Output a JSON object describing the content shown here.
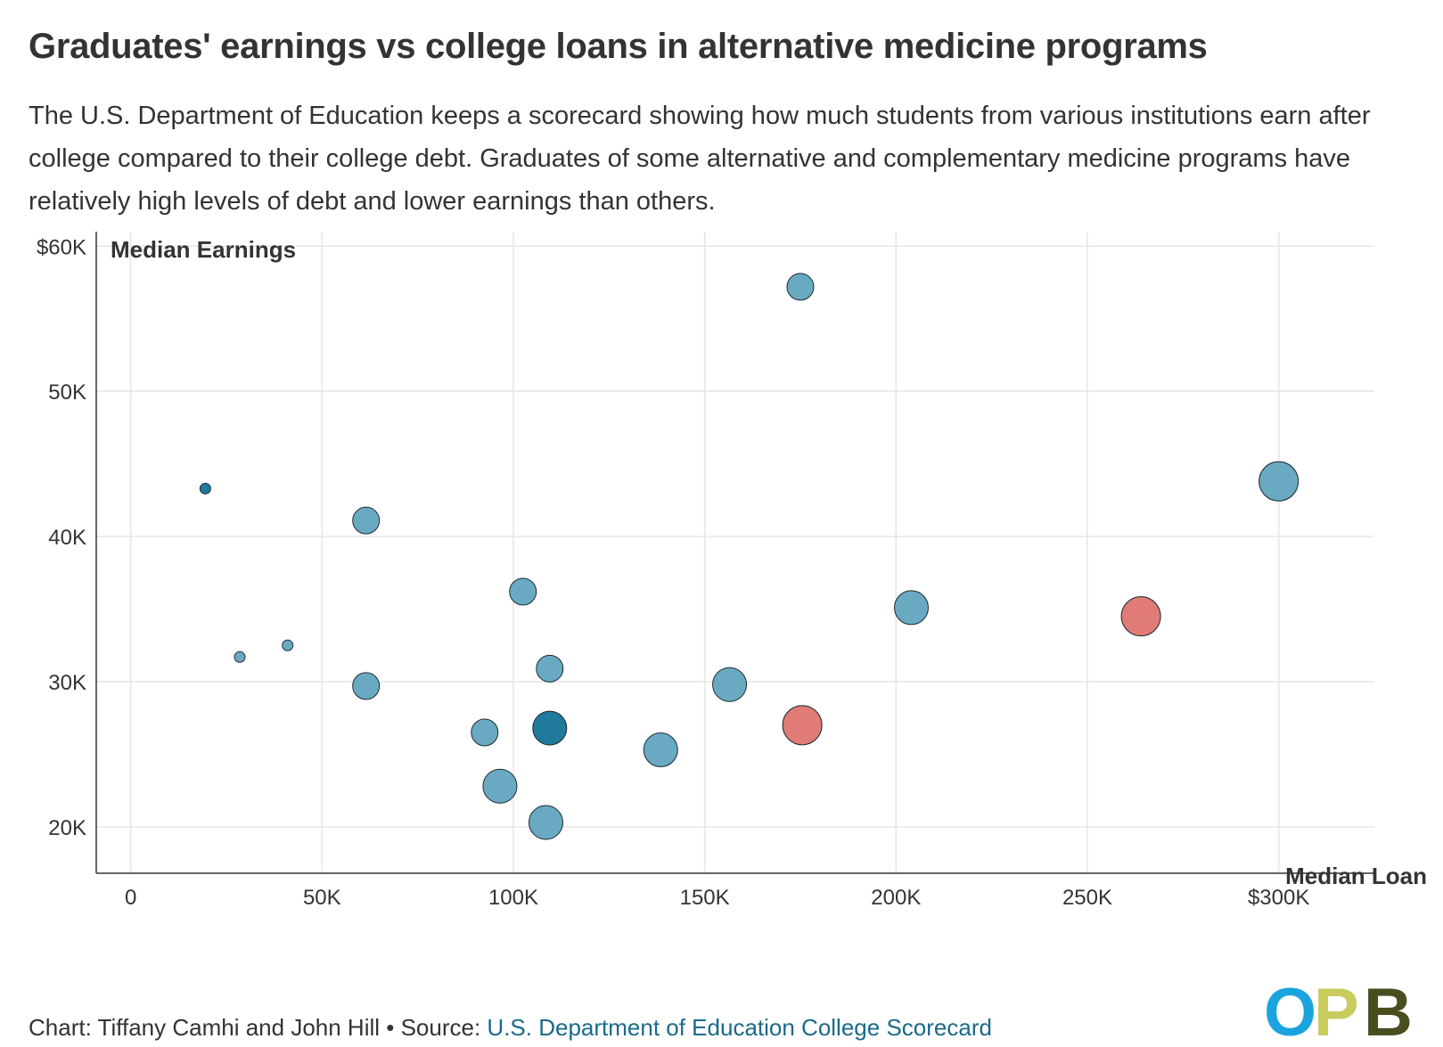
{
  "title": "Graduates' earnings vs college loans in alternative medicine programs",
  "subtitle": "The U.S. Department of Education keeps a scorecard showing how much students from various institutions earn after college compared to their college debt. Graduates of some alternative and complementary medicine programs have relatively high levels of debt and lower earnings than others.",
  "footer": {
    "credit": "Chart: Tiffany Camhi and John Hill • Source: ",
    "source_link": "U.S. Department of Education College Scorecard"
  },
  "logo": {
    "text": "OPB",
    "colors": [
      "#1ba3e0",
      "#c9cc5c",
      "#4a4e1f"
    ]
  },
  "colors": {
    "default_point": "#6aa9c2",
    "dark_point": "#1f7a9c",
    "highlight_point": "#e07b76",
    "grid": "#e6e6e6"
  },
  "chart_data": {
    "type": "scatter",
    "xlabel": "Median Loan",
    "ylabel": "Median Earnings",
    "xlim": [
      -9000,
      325000
    ],
    "ylim": [
      16800,
      61000
    ],
    "x_ticks": [
      0,
      50000,
      100000,
      150000,
      200000,
      250000,
      300000
    ],
    "x_tick_labels": [
      "0",
      "50K",
      "100K",
      "150K",
      "200K",
      "250K",
      "$300K"
    ],
    "y_ticks": [
      20000,
      30000,
      40000,
      50000,
      60000
    ],
    "y_tick_labels": [
      "20K",
      "30K",
      "40K",
      "50K",
      "$60K"
    ],
    "grid": true,
    "points": [
      {
        "x": 175000,
        "y": 57200,
        "size": 2,
        "color": "default"
      },
      {
        "x": 19500,
        "y": 43300,
        "size": 1,
        "color": "dark"
      },
      {
        "x": 300000,
        "y": 43800,
        "size": 4,
        "color": "default"
      },
      {
        "x": 61500,
        "y": 41100,
        "size": 2,
        "color": "default"
      },
      {
        "x": 102500,
        "y": 36200,
        "size": 2,
        "color": "default"
      },
      {
        "x": 204000,
        "y": 35100,
        "size": 3,
        "color": "default"
      },
      {
        "x": 264000,
        "y": 34500,
        "size": 4,
        "color": "highlight"
      },
      {
        "x": 41000,
        "y": 32500,
        "size": 1,
        "color": "default"
      },
      {
        "x": 28500,
        "y": 31700,
        "size": 1,
        "color": "default"
      },
      {
        "x": 109500,
        "y": 30900,
        "size": 2,
        "color": "default"
      },
      {
        "x": 61500,
        "y": 29700,
        "size": 2,
        "color": "default"
      },
      {
        "x": 156500,
        "y": 29800,
        "size": 3,
        "color": "default"
      },
      {
        "x": 175500,
        "y": 27000,
        "size": 4,
        "color": "highlight"
      },
      {
        "x": 92500,
        "y": 26500,
        "size": 2,
        "color": "default"
      },
      {
        "x": 109500,
        "y": 26800,
        "size": 3,
        "color": "dark"
      },
      {
        "x": 138500,
        "y": 25300,
        "size": 3,
        "color": "default"
      },
      {
        "x": 96500,
        "y": 22800,
        "size": 3,
        "color": "default"
      },
      {
        "x": 108500,
        "y": 20300,
        "size": 3,
        "color": "default"
      }
    ]
  }
}
